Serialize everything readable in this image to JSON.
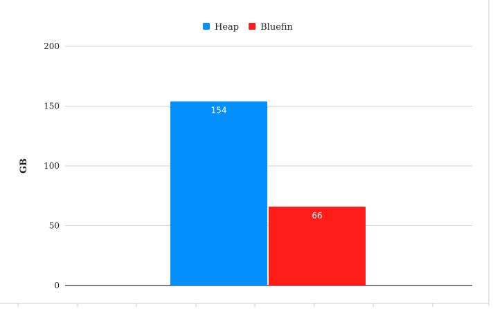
{
  "chart_data": {
    "type": "bar",
    "title": "",
    "xlabel": "",
    "ylabel": "GB",
    "ylim": [
      0,
      200
    ],
    "yticks": [
      "0",
      "50",
      "100",
      "150",
      "200"
    ],
    "grid": true,
    "legend_placement": "top",
    "categories": [
      ""
    ],
    "series": [
      {
        "name": "Heap",
        "values": [
          154
        ],
        "color": "#0390fd",
        "label": "154"
      },
      {
        "name": "Bluefin",
        "values": [
          66
        ],
        "color": "#fe1d19",
        "label": "66"
      }
    ]
  }
}
